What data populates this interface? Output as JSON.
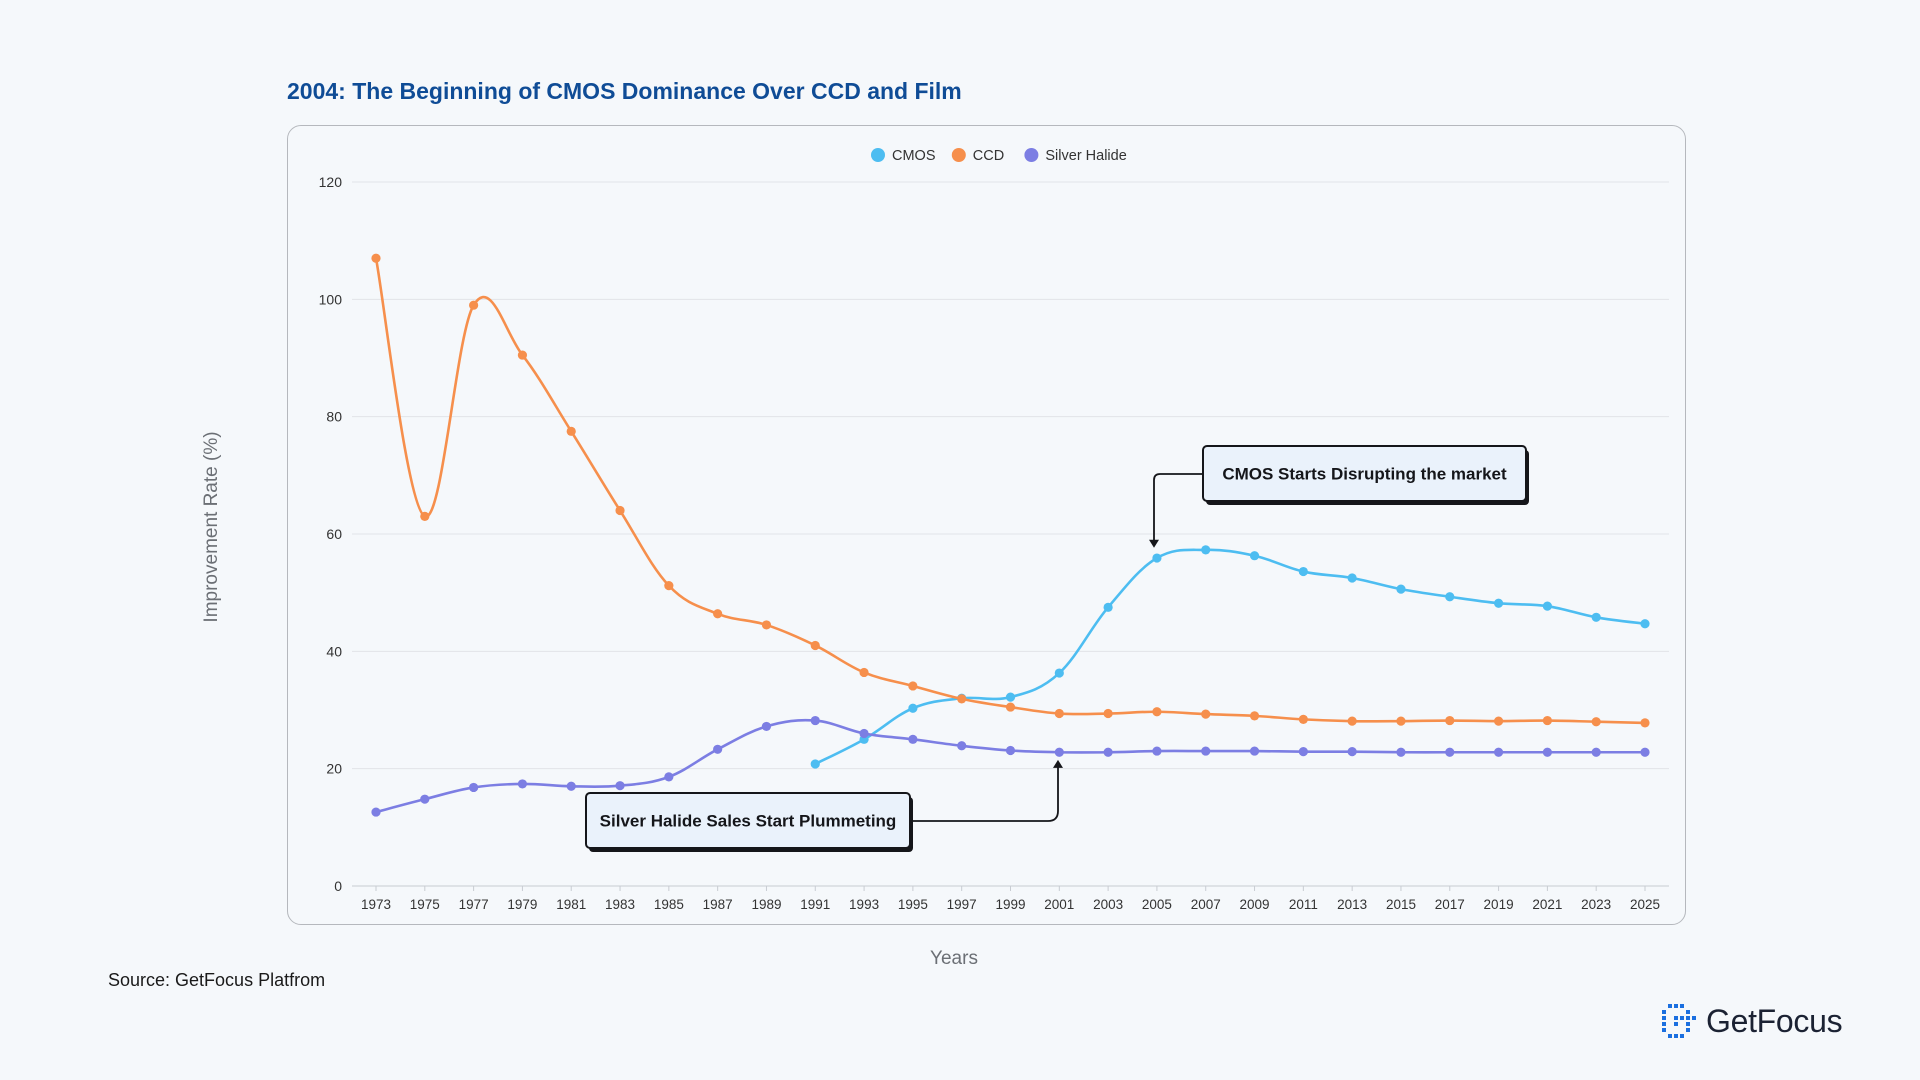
{
  "chart_data": {
    "type": "line",
    "title": "2004: The Beginning of CMOS Dominance Over CCD and Film",
    "xlabel": "Years",
    "ylabel": "Improvement Rate (%)",
    "ylim": [
      0,
      120
    ],
    "yticks": [
      0,
      20,
      40,
      60,
      80,
      100,
      120
    ],
    "grid": true,
    "legend_position": "top-center",
    "x": [
      "1973",
      "1975",
      "1977",
      "1979",
      "1981",
      "1983",
      "1985",
      "1987",
      "1989",
      "1991",
      "1993",
      "1995",
      "1997",
      "1999",
      "2001",
      "2003",
      "2005",
      "2007",
      "2009",
      "2011",
      "2013",
      "2015",
      "2017",
      "2019",
      "2021",
      "2023",
      "2025"
    ],
    "series": [
      {
        "name": "CMOS",
        "color": "#4dbdf1",
        "values": [
          null,
          null,
          null,
          null,
          null,
          null,
          null,
          null,
          null,
          20.8,
          25,
          30.3,
          32,
          32.2,
          36.3,
          47.5,
          55.9,
          57.3,
          56.3,
          53.6,
          52.5,
          50.6,
          49.3,
          48.2,
          47.7,
          45.8,
          44.7
        ]
      },
      {
        "name": "CCD",
        "color": "#f68f4c",
        "values": [
          107,
          63,
          99,
          90.5,
          77.5,
          64,
          51.2,
          46.4,
          44.5,
          41,
          36.4,
          34.1,
          31.9,
          30.5,
          29.4,
          29.4,
          29.7,
          29.3,
          29,
          28.4,
          28.1,
          28.1,
          28.2,
          28.1,
          28.2,
          28,
          27.8
        ]
      },
      {
        "name": "Silver Halide",
        "color": "#7c7ee3",
        "values": [
          12.6,
          14.8,
          16.8,
          17.4,
          17,
          17.1,
          18.6,
          23.3,
          27.2,
          28.2,
          26,
          25,
          23.9,
          23.1,
          22.8,
          22.8,
          23,
          23,
          23,
          22.9,
          22.9,
          22.8,
          22.8,
          22.8,
          22.8,
          22.8,
          22.8
        ]
      }
    ],
    "annotations": [
      {
        "text": "CMOS Starts Disrupting the market",
        "target_x": "2005",
        "target_y": 58
      },
      {
        "text": "Silver Halide Sales Start Plummeting",
        "target_x": "2001",
        "target_y": 21.5
      }
    ]
  },
  "source_text": "Source: GetFocus Platfrom",
  "logo": {
    "text": "GetFocus",
    "icon": "getfocus-logo-icon",
    "color": "#1a6fe0"
  }
}
